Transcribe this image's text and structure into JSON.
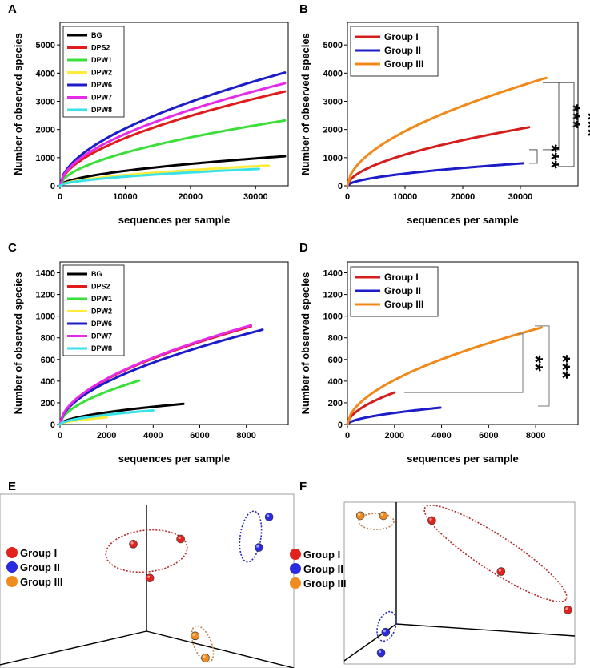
{
  "chart_data": [
    {
      "panel": "A",
      "type": "line",
      "xlabel": "sequences per sample",
      "ylabel": "Number of observed species",
      "xlim": [
        0,
        35000
      ],
      "ylim": [
        0,
        5800
      ],
      "xticks": [
        0,
        10000,
        20000,
        30000
      ],
      "yticks": [
        0,
        1000,
        2000,
        3000,
        4000,
        5000
      ],
      "legend_position": "top-left",
      "series": [
        {
          "name": "BG",
          "color": "#000000",
          "end_x": 34500,
          "end_y": 1050
        },
        {
          "name": "DPS2",
          "color": "#e01b1b",
          "end_x": 34500,
          "end_y": 3350
        },
        {
          "name": "DPW1",
          "color": "#3adf3a",
          "end_x": 34500,
          "end_y": 2320
        },
        {
          "name": "DPW2",
          "color": "#ffec3a",
          "end_x": 32000,
          "end_y": 720
        },
        {
          "name": "DPW6",
          "color": "#1c1cc8",
          "end_x": 34500,
          "end_y": 4020
        },
        {
          "name": "DPW7",
          "color": "#e62be6",
          "end_x": 34500,
          "end_y": 3640
        },
        {
          "name": "DPW8",
          "color": "#39e2e8",
          "end_x": 30500,
          "end_y": 600
        }
      ]
    },
    {
      "panel": "B",
      "type": "line",
      "xlabel": "sequences per sample",
      "ylabel": "Number of observed species",
      "xlim": [
        0,
        40000
      ],
      "ylim": [
        0,
        5800
      ],
      "xticks": [
        0,
        10000,
        20000,
        30000
      ],
      "yticks": [
        0,
        1000,
        2000,
        3000,
        4000,
        5000
      ],
      "legend_position": "top-left",
      "series": [
        {
          "name": "Group I",
          "color": "#d41d1d",
          "end_x": 31500,
          "end_y": 2080
        },
        {
          "name": "Group II",
          "color": "#1c1cc8",
          "end_x": 30500,
          "end_y": 800
        },
        {
          "name": "Group III",
          "color": "#f0881a",
          "end_x": 34500,
          "end_y": 3830
        }
      ],
      "annotations": [
        {
          "label": "***",
          "between": [
            "Group I",
            "Group III"
          ]
        },
        {
          "label": "***",
          "between": [
            "Group I",
            "Group II"
          ]
        },
        {
          "label": "***",
          "between": [
            "Group II",
            "Group III"
          ]
        }
      ]
    },
    {
      "panel": "C",
      "type": "line",
      "xlabel": "sequences per sample",
      "ylabel": "Number of observed species",
      "xlim": [
        0,
        9800
      ],
      "ylim": [
        0,
        1500
      ],
      "xticks": [
        0,
        2000,
        4000,
        6000,
        8000
      ],
      "yticks": [
        0,
        200,
        400,
        600,
        800,
        1000,
        1200,
        1400
      ],
      "legend_position": "top-left",
      "series": [
        {
          "name": "BG",
          "color": "#000000",
          "end_x": 5300,
          "end_y": 190
        },
        {
          "name": "DPS2",
          "color": "#e01b1b",
          "end_x": 8200,
          "end_y": 905
        },
        {
          "name": "DPW1",
          "color": "#3adf3a",
          "end_x": 3400,
          "end_y": 405
        },
        {
          "name": "DPW2",
          "color": "#ffec3a",
          "end_x": 2000,
          "end_y": 65
        },
        {
          "name": "DPW6",
          "color": "#1c1cc8",
          "end_x": 8700,
          "end_y": 875
        },
        {
          "name": "DPW7",
          "color": "#e62be6",
          "end_x": 8200,
          "end_y": 915
        },
        {
          "name": "DPW8",
          "color": "#39e2e8",
          "end_x": 4000,
          "end_y": 130
        }
      ]
    },
    {
      "panel": "D",
      "type": "line",
      "xlabel": "sequences per sample",
      "ylabel": "Number of observed species",
      "xlim": [
        0,
        9800
      ],
      "ylim": [
        0,
        1500
      ],
      "xticks": [
        0,
        2000,
        4000,
        6000,
        8000
      ],
      "yticks": [
        0,
        200,
        400,
        600,
        800,
        1000,
        1200,
        1400
      ],
      "legend_position": "top-left",
      "series": [
        {
          "name": "Group I",
          "color": "#d41d1d",
          "end_x": 2000,
          "end_y": 295
        },
        {
          "name": "Group II",
          "color": "#1c1cc8",
          "end_x": 3950,
          "end_y": 155
        },
        {
          "name": "Group III",
          "color": "#f0881a",
          "end_x": 8250,
          "end_y": 895
        }
      ],
      "annotations": [
        {
          "label": "**",
          "between": [
            "Group I",
            "Group III"
          ]
        },
        {
          "label": "***",
          "between": [
            "Group II",
            "Group III"
          ]
        }
      ]
    },
    {
      "panel": "E",
      "type": "scatter",
      "description": "3D PCoA",
      "legend": [
        {
          "name": "Group I",
          "color": "#e0231c"
        },
        {
          "name": "Group II",
          "color": "#2a2ae0"
        },
        {
          "name": "Group III",
          "color": "#f08c1e"
        }
      ],
      "points": [
        {
          "group": "Group I",
          "x": 0.22,
          "y": 0.72
        },
        {
          "group": "Group I",
          "x": 0.45,
          "y": 0.75
        },
        {
          "group": "Group I",
          "x": 0.3,
          "y": 0.52
        },
        {
          "group": "Group II",
          "x": 0.88,
          "y": 0.88
        },
        {
          "group": "Group II",
          "x": 0.83,
          "y": 0.7
        },
        {
          "group": "Group III",
          "x": 0.52,
          "y": 0.18
        },
        {
          "group": "Group III",
          "x": 0.57,
          "y": 0.05
        }
      ]
    },
    {
      "panel": "F",
      "type": "scatter",
      "description": "3D PCoA",
      "legend": [
        {
          "name": "Group I",
          "color": "#e0231c"
        },
        {
          "name": "Group II",
          "color": "#2a2ae0"
        },
        {
          "name": "Group III",
          "color": "#f08c1e"
        }
      ],
      "points": [
        {
          "group": "Group I",
          "x": 0.38,
          "y": 0.9
        },
        {
          "group": "Group I",
          "x": 0.68,
          "y": 0.58
        },
        {
          "group": "Group I",
          "x": 0.97,
          "y": 0.34
        },
        {
          "group": "Group II",
          "x": 0.18,
          "y": 0.2
        },
        {
          "group": "Group II",
          "x": 0.16,
          "y": 0.07
        },
        {
          "group": "Group III",
          "x": 0.07,
          "y": 0.93
        },
        {
          "group": "Group III",
          "x": 0.17,
          "y": 0.93
        }
      ]
    }
  ],
  "labels": {
    "panel_A": "A",
    "panel_B": "B",
    "panel_C": "C",
    "panel_D": "D",
    "panel_E": "E",
    "panel_F": "F"
  }
}
